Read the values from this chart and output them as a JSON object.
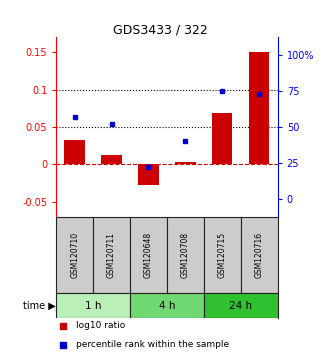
{
  "title": "GDS3433 / 322",
  "samples": [
    "GSM120710",
    "GSM120711",
    "GSM120648",
    "GSM120708",
    "GSM120715",
    "GSM120716"
  ],
  "log10_ratio": [
    0.032,
    0.012,
    -0.028,
    0.003,
    0.068,
    0.15
  ],
  "percentile_rank": [
    57,
    52,
    22,
    40,
    75,
    73
  ],
  "time_groups": [
    {
      "label": "1 h",
      "indices": [
        0,
        1
      ],
      "color": "#b8f0b8"
    },
    {
      "label": "4 h",
      "indices": [
        2,
        3
      ],
      "color": "#70d870"
    },
    {
      "label": "24 h",
      "indices": [
        4,
        5
      ],
      "color": "#30c030"
    }
  ],
  "bar_color": "#cc0000",
  "dot_color": "#0000cc",
  "left_ylim": [
    -0.07,
    0.17
  ],
  "left_yticks": [
    -0.05,
    0.0,
    0.05,
    0.1,
    0.15
  ],
  "right_ylim": [
    -12.5,
    112.5
  ],
  "right_yticks": [
    0,
    25,
    50,
    75,
    100
  ],
  "right_yticklabels": [
    "0",
    "25",
    "50",
    "75",
    "100%"
  ],
  "hline_y": [
    0.05,
    0.1
  ],
  "zero_line_color": "#cc0000",
  "sample_box_color": "#cccccc",
  "sample_box_edgecolor": "#222222",
  "bg_color": "#ffffff",
  "legend_items": [
    {
      "color": "#cc0000",
      "label": "log10 ratio"
    },
    {
      "color": "#0000cc",
      "label": "percentile rank within the sample"
    }
  ]
}
